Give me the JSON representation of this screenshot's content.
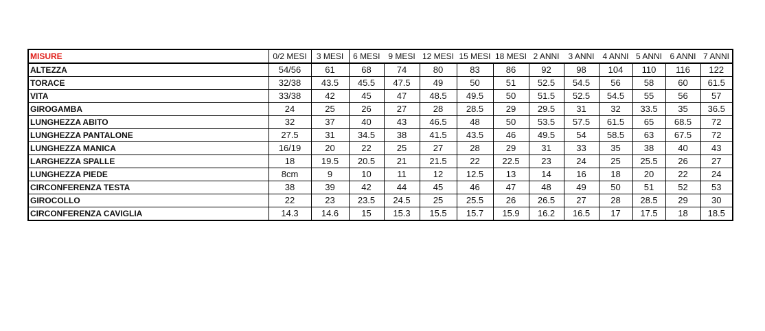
{
  "colors": {
    "header_label": "#e0201b"
  },
  "table": {
    "header_label": "MISURE",
    "columns": [
      "0/2 MESI",
      "3 MESI",
      "6 MESI",
      "9 MESI",
      "12 MESI",
      "15 MESI",
      "18 MESI",
      "2 ANNI",
      "3 ANNI",
      "4 ANNI",
      "5 ANNI",
      "6 ANNI",
      "7 ANNI"
    ],
    "rows": [
      {
        "label": "ALTEZZA",
        "values": [
          "54/56",
          "61",
          "68",
          "74",
          "80",
          "83",
          "86",
          "92",
          "98",
          "104",
          "110",
          "116",
          "122"
        ]
      },
      {
        "label": "TORACE",
        "values": [
          "32/38",
          "43.5",
          "45.5",
          "47.5",
          "49",
          "50",
          "51",
          "52.5",
          "54.5",
          "56",
          "58",
          "60",
          "61.5"
        ]
      },
      {
        "label": "VITA",
        "values": [
          "33/38",
          "42",
          "45",
          "47",
          "48.5",
          "49.5",
          "50",
          "51.5",
          "52.5",
          "54.5",
          "55",
          "56",
          "57"
        ]
      },
      {
        "label": "GIROGAMBA",
        "values": [
          "24",
          "25",
          "26",
          "27",
          "28",
          "28.5",
          "29",
          "29.5",
          "31",
          "32",
          "33.5",
          "35",
          "36.5"
        ]
      },
      {
        "label": "LUNGHEZZA ABITO",
        "values": [
          "32",
          "37",
          "40",
          "43",
          "46.5",
          "48",
          "50",
          "53.5",
          "57.5",
          "61.5",
          "65",
          "68.5",
          "72"
        ]
      },
      {
        "label": "LUNGHEZZA PANTALONE",
        "values": [
          "27.5",
          "31",
          "34.5",
          "38",
          "41.5",
          "43.5",
          "46",
          "49.5",
          "54",
          "58.5",
          "63",
          "67.5",
          "72"
        ]
      },
      {
        "label": "LUNGHEZZA MANICA",
        "values": [
          "16/19",
          "20",
          "22",
          "25",
          "27",
          "28",
          "29",
          "31",
          "33",
          "35",
          "38",
          "40",
          "43"
        ]
      },
      {
        "label": "LARGHEZZA SPALLE",
        "values": [
          "18",
          "19.5",
          "20.5",
          "21",
          "21.5",
          "22",
          "22.5",
          "23",
          "24",
          "25",
          "25.5",
          "26",
          "27"
        ]
      },
      {
        "label": "LUNGHEZZA PIEDE",
        "values": [
          "8cm",
          "9",
          "10",
          "11",
          "12",
          "12.5",
          "13",
          "14",
          "16",
          "18",
          "20",
          "22",
          "24"
        ]
      },
      {
        "label": "CIRCONFERENZA TESTA",
        "values": [
          "38",
          "39",
          "42",
          "44",
          "45",
          "46",
          "47",
          "48",
          "49",
          "50",
          "51",
          "52",
          "53"
        ]
      },
      {
        "label": "GIROCOLLO",
        "values": [
          "22",
          "23",
          "23.5",
          "24.5",
          "25",
          "25.5",
          "26",
          "26.5",
          "27",
          "28",
          "28.5",
          "29",
          "30"
        ]
      },
      {
        "label": "CIRCONFERENZA CAVIGLIA",
        "values": [
          "14.3",
          "14.6",
          "15",
          "15.3",
          "15.5",
          "15.7",
          "15.9",
          "16.2",
          "16.5",
          "17",
          "17.5",
          "18",
          "18.5"
        ]
      }
    ]
  }
}
